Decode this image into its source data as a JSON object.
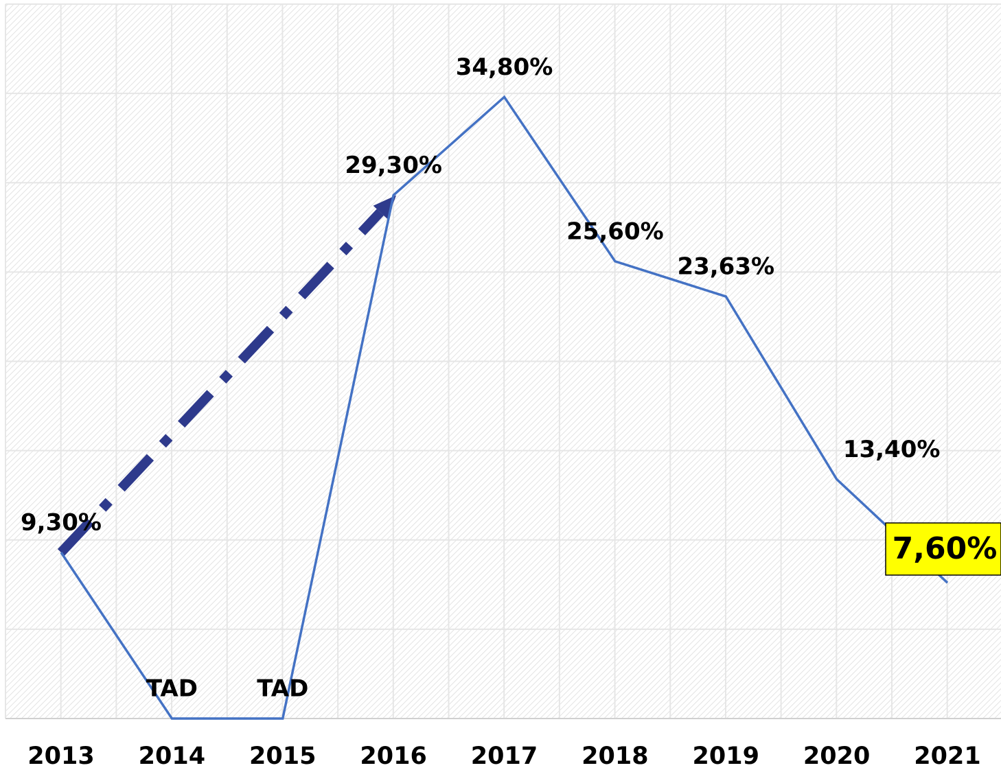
{
  "chart_data": {
    "type": "line",
    "categories": [
      "2013",
      "2014",
      "2015",
      "2016",
      "2017",
      "2018",
      "2019",
      "2020",
      "2021"
    ],
    "series": [
      {
        "color": "#4472c4",
        "values": [
          9.3,
          0,
          0,
          29.3,
          34.8,
          25.6,
          23.63,
          13.4,
          7.6
        ],
        "value_labels": [
          "9,30%",
          "TAD",
          "TAD",
          "29,30%",
          "34,80%",
          "25,60%",
          "23,63%",
          "13,40%",
          "7,60%"
        ]
      }
    ],
    "ylim": [
      0,
      40
    ],
    "yticks": [
      0,
      5,
      10,
      15,
      20,
      25,
      30,
      35,
      40
    ],
    "grid": true,
    "highlight_index": 8,
    "highlight_color": "#ffff00",
    "trend_arrow": {
      "from": 0,
      "to": 3,
      "color": "#2e3a8c"
    }
  }
}
